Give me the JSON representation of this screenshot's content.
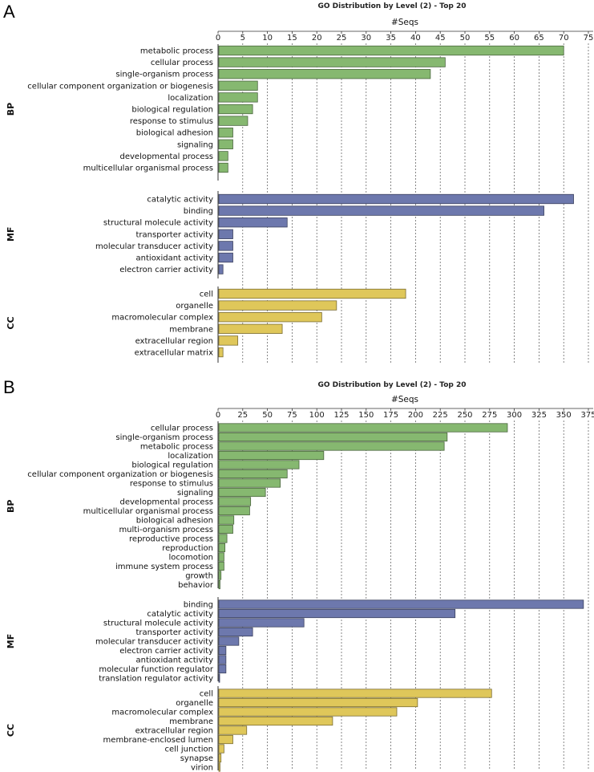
{
  "chart_data": [
    {
      "type": "bar",
      "orientation": "horizontal",
      "panel": "A",
      "title": "GO Distribution by Level (2) - Top 20",
      "xlabel": "#Seqs",
      "xlim": [
        0,
        75
      ],
      "xticks": [
        0,
        5,
        10,
        15,
        20,
        25,
        30,
        35,
        40,
        45,
        50,
        55,
        60,
        65,
        70,
        75
      ],
      "grid": "vertical dashed",
      "groups": [
        {
          "name": "BP",
          "color": "#86b870",
          "categories": [
            "metabolic process",
            "cellular process",
            "single-organism process",
            "cellular component organization or biogenesis",
            "localization",
            "biological regulation",
            "response to stimulus",
            "biological adhesion",
            "signaling",
            "developmental process",
            "multicellular organismal process"
          ],
          "values": [
            70,
            46,
            43,
            8,
            8,
            7,
            6,
            3,
            3,
            2,
            2
          ]
        },
        {
          "name": "MF",
          "color": "#6d78ad",
          "categories": [
            "catalytic activity",
            "binding",
            "structural molecule activity",
            "transporter activity",
            "molecular transducer activity",
            "antioxidant activity",
            "electron carrier activity"
          ],
          "values": [
            72,
            66,
            14,
            3,
            3,
            3,
            1
          ]
        },
        {
          "name": "CC",
          "color": "#dfc75a",
          "categories": [
            "cell",
            "organelle",
            "macromolecular complex",
            "membrane",
            "extracellular region",
            "extracellular matrix"
          ],
          "values": [
            38,
            24,
            21,
            13,
            4,
            1
          ]
        }
      ]
    },
    {
      "type": "bar",
      "orientation": "horizontal",
      "panel": "B",
      "title": "GO Distribution by Level (2) - Top 20",
      "xlabel": "#Seqs",
      "xlim": [
        0,
        375
      ],
      "xticks": [
        0,
        25,
        50,
        75,
        100,
        125,
        150,
        175,
        200,
        225,
        250,
        275,
        300,
        325,
        350,
        375
      ],
      "grid": "vertical dashed",
      "groups": [
        {
          "name": "BP",
          "color": "#86b870",
          "categories": [
            "cellular process",
            "single-organism process",
            "metabolic process",
            "localization",
            "biological regulation",
            "cellular component organization or biogenesis",
            "response to stimulus",
            "signaling",
            "developmental process",
            "multicellular organismal process",
            "biological adhesion",
            "multi-organism process",
            "reproductive process",
            "reproduction",
            "locomotion",
            "immune system process",
            "growth",
            "behavior"
          ],
          "values": [
            293,
            232,
            229,
            107,
            82,
            70,
            63,
            48,
            33,
            32,
            16,
            15,
            9,
            7,
            6,
            6,
            3,
            2
          ]
        },
        {
          "name": "MF",
          "color": "#6d78ad",
          "categories": [
            "binding",
            "catalytic activity",
            "structural molecule activity",
            "transporter activity",
            "molecular transducer activity",
            "electron carrier activity",
            "antioxidant activity",
            "molecular function regulator",
            "translation regulator activity"
          ],
          "values": [
            370,
            240,
            87,
            35,
            21,
            8,
            8,
            8,
            1
          ]
        },
        {
          "name": "CC",
          "color": "#dfc75a",
          "categories": [
            "cell",
            "organelle",
            "macromolecular complex",
            "membrane",
            "extracellular region",
            "membrane-enclosed lumen",
            "cell junction",
            "synapse",
            "virion"
          ],
          "values": [
            277,
            202,
            181,
            116,
            29,
            15,
            6,
            3,
            2
          ]
        }
      ]
    }
  ]
}
